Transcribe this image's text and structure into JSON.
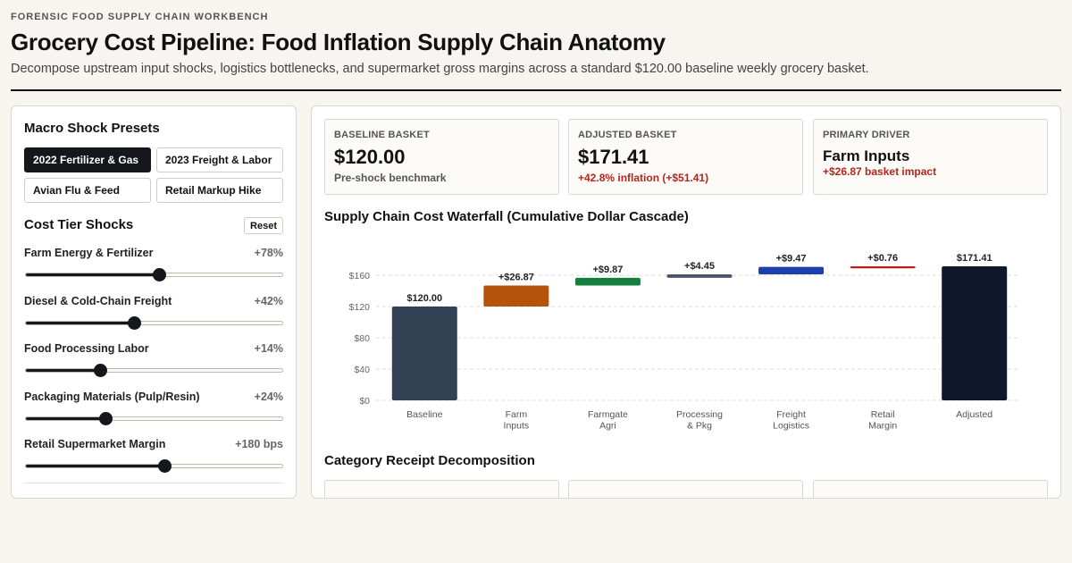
{
  "header": {
    "eyebrow": "FORENSIC FOOD SUPPLY CHAIN WORKBENCH",
    "title": "Grocery Cost Pipeline: Food Inflation Supply Chain Anatomy",
    "subtitle": "Decompose upstream input shocks, logistics bottlenecks, and supermarket gross margins across a standard $120.00 baseline weekly grocery basket."
  },
  "presets": {
    "title": "Macro Shock Presets",
    "items": [
      {
        "label": "2022 Fertilizer & Gas",
        "active": true
      },
      {
        "label": "2023 Freight & Labor",
        "active": false
      },
      {
        "label": "Avian Flu & Feed",
        "active": false
      },
      {
        "label": "Retail Markup Hike",
        "active": false
      }
    ]
  },
  "shocks": {
    "title": "Cost Tier Shocks",
    "reset_label": "Reset",
    "items": [
      {
        "label": "Farm Energy & Fertilizer",
        "value": "+78%",
        "position": 0.52
      },
      {
        "label": "Diesel & Cold-Chain Freight",
        "value": "+42%",
        "position": 0.42
      },
      {
        "label": "Food Processing Labor",
        "value": "+14%",
        "position": 0.29
      },
      {
        "label": "Packaging Materials (Pulp/Resin)",
        "value": "+24%",
        "position": 0.31
      },
      {
        "label": "Retail Supermarket Margin",
        "value": "+180 bps",
        "position": 0.54
      }
    ]
  },
  "kpis": [
    {
      "label": "BASELINE BASKET",
      "value": "$120.00",
      "sub": "Pre-shock benchmark"
    },
    {
      "label": "ADJUSTED BASKET",
      "value": "$171.41",
      "sub": "+42.8% inflation (+$51.41)"
    },
    {
      "label": "PRIMARY DRIVER",
      "value": "Farm Inputs",
      "sub": "+$26.87 basket impact"
    }
  ],
  "waterfall_title": "Supply Chain Cost Waterfall (Cumulative Dollar Cascade)",
  "category_title": "Category Receipt Decomposition",
  "colors": {
    "baseline": "#334155",
    "farm": "#b45309",
    "agri": "#15803d",
    "processing": "#475569",
    "freight": "#1e40af",
    "retail": "#b91c1c",
    "adjusted": "#0f172a"
  },
  "chart_data": {
    "type": "bar",
    "subtype": "waterfall",
    "title": "Supply Chain Cost Waterfall (Cumulative Dollar Cascade)",
    "categories": [
      [
        "Baseline"
      ],
      [
        "Farm",
        "Inputs"
      ],
      [
        "Farmgate",
        "Agri"
      ],
      [
        "Processing",
        "& Pkg"
      ],
      [
        "Freight",
        "Logistics"
      ],
      [
        "Retail",
        "Margin"
      ],
      [
        "Adjusted"
      ]
    ],
    "values": [
      120.0,
      26.87,
      9.87,
      4.45,
      9.47,
      0.76,
      171.41
    ],
    "labels": [
      "$120.00",
      "+$26.87",
      "+$9.87",
      "+$4.45",
      "+$9.47",
      "+$0.76",
      "$171.41"
    ],
    "kinds": [
      "total",
      "delta",
      "delta",
      "delta",
      "delta",
      "delta",
      "total"
    ],
    "color_keys": [
      "baseline",
      "farm",
      "agri",
      "processing",
      "freight",
      "retail",
      "adjusted"
    ],
    "yticks": [
      0,
      40,
      80,
      120,
      160
    ],
    "ytick_labels": [
      "$0",
      "$40",
      "$80",
      "$120",
      "$160"
    ],
    "ylim": [
      0,
      171.41
    ],
    "grid": true
  }
}
